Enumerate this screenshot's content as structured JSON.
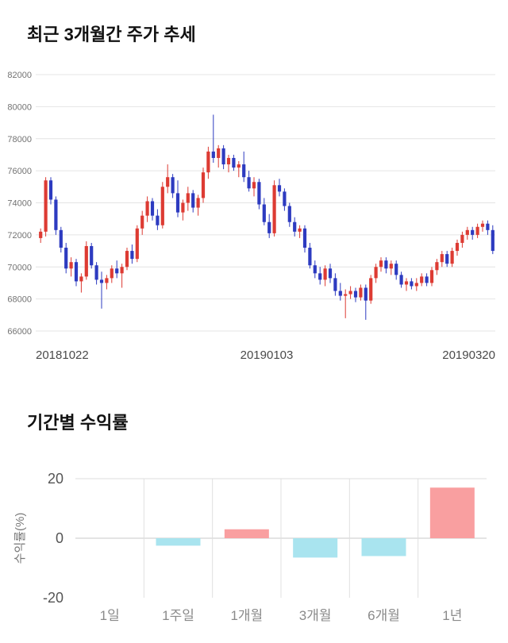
{
  "section1": {
    "title": "최근 3개월간 주가 추세"
  },
  "section2": {
    "title": "기간별 수익률"
  },
  "chart_data": [
    {
      "type": "candlestick",
      "title": "최근 3개월간 주가 추세",
      "ylim": [
        66000,
        82000
      ],
      "yticks": [
        66000,
        68000,
        70000,
        72000,
        74000,
        76000,
        78000,
        80000,
        82000
      ],
      "xtick_labels": [
        "20181022",
        "20190103",
        "20190320"
      ],
      "up_color": "#dd3b33",
      "down_color": "#2d3bc0",
      "grid": true,
      "candles": [
        [
          71800,
          72400,
          71500,
          72200
        ],
        [
          72200,
          75600,
          71900,
          75400
        ],
        [
          75400,
          75600,
          73900,
          74200
        ],
        [
          74200,
          74400,
          72000,
          72300
        ],
        [
          72300,
          72500,
          70900,
          71200
        ],
        [
          71200,
          71500,
          69600,
          69900
        ],
        [
          69900,
          70600,
          69400,
          70300
        ],
        [
          70300,
          70500,
          68800,
          69100
        ],
        [
          69100,
          69600,
          68400,
          69400
        ],
        [
          69400,
          71600,
          69200,
          71300
        ],
        [
          71300,
          71500,
          69900,
          70100
        ],
        [
          70100,
          70300,
          68900,
          69200
        ],
        [
          69200,
          69700,
          67400,
          69000
        ],
        [
          69000,
          69500,
          68600,
          69300
        ],
        [
          69300,
          70100,
          69000,
          69900
        ],
        [
          69900,
          70400,
          69300,
          69600
        ],
        [
          69600,
          70200,
          68700,
          70000
        ],
        [
          70000,
          71200,
          69800,
          71000
        ],
        [
          71000,
          71400,
          70200,
          70500
        ],
        [
          70500,
          72600,
          70300,
          72400
        ],
        [
          72400,
          73500,
          72000,
          73200
        ],
        [
          73200,
          74400,
          72800,
          74100
        ],
        [
          74100,
          74300,
          72900,
          73200
        ],
        [
          73200,
          73600,
          72300,
          72600
        ],
        [
          72600,
          75300,
          72400,
          75000
        ],
        [
          75000,
          76400,
          74600,
          75600
        ],
        [
          75600,
          75800,
          74300,
          74600
        ],
        [
          74600,
          75400,
          73100,
          73400
        ],
        [
          73400,
          74200,
          72900,
          74000
        ],
        [
          74000,
          75000,
          73500,
          74600
        ],
        [
          74600,
          74800,
          73400,
          73700
        ],
        [
          73700,
          74500,
          73200,
          74300
        ],
        [
          74300,
          76200,
          74000,
          75900
        ],
        [
          75900,
          77500,
          75500,
          77200
        ],
        [
          77200,
          79500,
          76500,
          76800
        ],
        [
          76800,
          77600,
          76200,
          77400
        ],
        [
          77400,
          77600,
          76100,
          76400
        ],
        [
          76400,
          77000,
          75900,
          76800
        ],
        [
          76800,
          77000,
          76000,
          76200
        ],
        [
          76200,
          76600,
          75600,
          76400
        ],
        [
          76400,
          77200,
          75300,
          75600
        ],
        [
          75600,
          76000,
          74700,
          74900
        ],
        [
          74900,
          75600,
          74400,
          75300
        ],
        [
          75300,
          75500,
          73600,
          73900
        ],
        [
          73900,
          74300,
          72600,
          72800
        ],
        [
          72800,
          73300,
          71800,
          72100
        ],
        [
          72100,
          75400,
          71900,
          75100
        ],
        [
          75100,
          75500,
          74400,
          74700
        ],
        [
          74700,
          74900,
          73500,
          73800
        ],
        [
          73800,
          74000,
          72500,
          72800
        ],
        [
          72800,
          73100,
          71900,
          72200
        ],
        [
          72200,
          72600,
          71800,
          72400
        ],
        [
          72400,
          72600,
          70900,
          71200
        ],
        [
          71200,
          71500,
          69900,
          70100
        ],
        [
          70100,
          70400,
          69300,
          69600
        ],
        [
          69600,
          70000,
          68900,
          69200
        ],
        [
          69200,
          70100,
          68800,
          69900
        ],
        [
          69900,
          70200,
          69000,
          69300
        ],
        [
          69300,
          69600,
          68200,
          68500
        ],
        [
          68500,
          69000,
          67900,
          68200
        ],
        [
          68200,
          68600,
          66800,
          68300
        ],
        [
          68300,
          68800,
          68000,
          68500
        ],
        [
          68500,
          68700,
          67800,
          68100
        ],
        [
          68100,
          68900,
          67900,
          68700
        ],
        [
          68700,
          68900,
          66700,
          67900
        ],
        [
          67900,
          69500,
          67700,
          69300
        ],
        [
          69300,
          70200,
          69000,
          70000
        ],
        [
          70000,
          70600,
          69700,
          70400
        ],
        [
          70400,
          70600,
          69600,
          69900
        ],
        [
          69900,
          70400,
          69500,
          70200
        ],
        [
          70200,
          70400,
          69200,
          69500
        ],
        [
          69500,
          69700,
          68700,
          68900
        ],
        [
          68900,
          69300,
          68500,
          69100
        ],
        [
          69100,
          69300,
          68600,
          68800
        ],
        [
          68800,
          69300,
          68500,
          69000
        ],
        [
          69000,
          69600,
          68800,
          69400
        ],
        [
          69400,
          69600,
          68800,
          69000
        ],
        [
          69000,
          70000,
          68800,
          69800
        ],
        [
          69800,
          70500,
          69500,
          70300
        ],
        [
          70300,
          71000,
          70000,
          70800
        ],
        [
          70800,
          71000,
          70000,
          70200
        ],
        [
          70200,
          71200,
          70000,
          71000
        ],
        [
          71000,
          71700,
          70700,
          71500
        ],
        [
          71500,
          72200,
          71200,
          72000
        ],
        [
          72000,
          72500,
          71700,
          72300
        ],
        [
          72300,
          72500,
          71700,
          72000
        ],
        [
          72000,
          72700,
          71800,
          72500
        ],
        [
          72500,
          72900,
          72200,
          72700
        ],
        [
          72700,
          72900,
          72000,
          72300
        ],
        [
          72300,
          72600,
          70800,
          71000
        ]
      ]
    },
    {
      "type": "bar",
      "title": "기간별 수익률",
      "categories": [
        "1일",
        "1주일",
        "1개월",
        "3개월",
        "6개월",
        "1년"
      ],
      "values": [
        0,
        -2.5,
        3,
        -6.5,
        -6,
        17
      ],
      "ylabel": "수익률(%)",
      "ylim": [
        -20,
        20
      ],
      "yticks": [
        20,
        0,
        -20
      ],
      "positive_color": "#f99fa0",
      "negative_color": "#a9e4ef",
      "grid": true,
      "legend": "none"
    }
  ]
}
